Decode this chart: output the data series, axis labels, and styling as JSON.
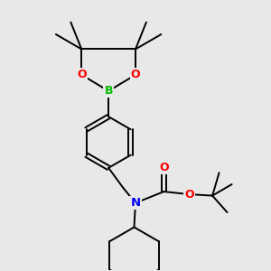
{
  "background_color": "#e8e8e8",
  "atom_colors": {
    "B": "#00bb00",
    "O": "#ff0000",
    "N": "#0000ee",
    "C": "#000000"
  },
  "line_color": "#000000",
  "line_width": 1.4,
  "figsize": [
    3.0,
    3.0
  ],
  "dpi": 100
}
